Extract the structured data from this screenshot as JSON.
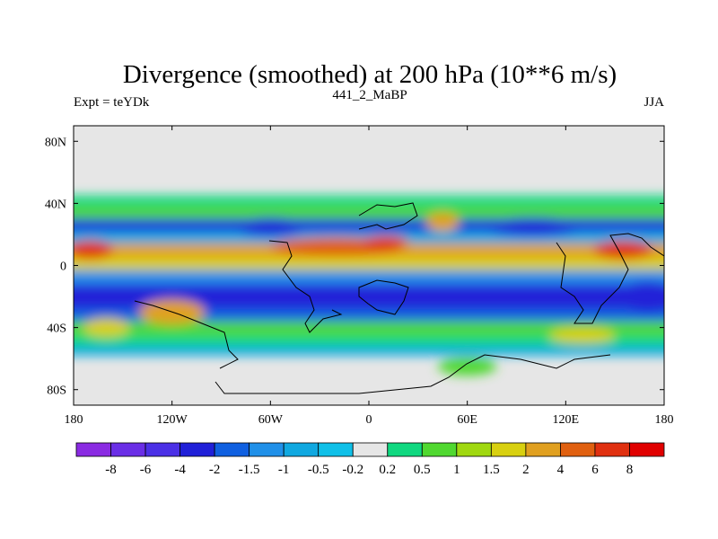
{
  "chart_data": {
    "type": "heatmap",
    "title": "Divergence (smoothed) at 200 hPa (10**6 m/s)",
    "subtitle_left": "Expt = teYDk",
    "subtitle_center": "441_2_MaBP",
    "subtitle_right": "JJA",
    "projection": "cylindrical equidistant",
    "x_range": [
      -180,
      180
    ],
    "y_range": [
      -90,
      90
    ],
    "x_ticks": [
      {
        "value": -180,
        "label": "180"
      },
      {
        "value": -120,
        "label": "120W"
      },
      {
        "value": -60,
        "label": "60W"
      },
      {
        "value": 0,
        "label": "0"
      },
      {
        "value": 60,
        "label": "60E"
      },
      {
        "value": 120,
        "label": "120E"
      },
      {
        "value": 180,
        "label": "180"
      }
    ],
    "y_ticks": [
      {
        "value": 80,
        "label": "80N"
      },
      {
        "value": 40,
        "label": "40N"
      },
      {
        "value": 0,
        "label": "0"
      },
      {
        "value": -40,
        "label": "40S"
      },
      {
        "value": -80,
        "label": "80S"
      }
    ],
    "colorbar": {
      "levels": [
        -8,
        -6,
        -4,
        -2,
        -1.5,
        -1,
        -0.5,
        -0.2,
        0.2,
        0.5,
        1,
        1.5,
        2,
        4,
        6,
        8
      ],
      "labels": [
        "-8",
        "-6",
        "-4",
        "-2",
        "-1.5",
        "-1",
        "-0.5",
        "-0.2",
        "0.2",
        "0.5",
        "1",
        "1.5",
        "2",
        "4",
        "6",
        "8"
      ],
      "colors": [
        "#8a2be2",
        "#6a2ee6",
        "#4b30e6",
        "#2020d8",
        "#1060e0",
        "#2090e8",
        "#10a8e0",
        "#10c0e8",
        "#e6e6e6",
        "#10d880",
        "#50d830",
        "#a0d810",
        "#d8d010",
        "#e0a020",
        "#e06010",
        "#e03010",
        "#e00000"
      ]
    },
    "no_data_color": "#e6e6e6",
    "bands": [
      {
        "lat_top": 45,
        "lat_bottom": 38,
        "color": "#10d880"
      },
      {
        "lat_top": 38,
        "lat_bottom": 30,
        "color": "#50d830"
      },
      {
        "lat_top": 30,
        "lat_bottom": 22,
        "color": "#2020d8"
      },
      {
        "lat_top": 22,
        "lat_bottom": 14,
        "color": "#10a8e0"
      },
      {
        "lat_top": 14,
        "lat_bottom": 5,
        "color": "#e0a020"
      },
      {
        "lat_top": 5,
        "lat_bottom": -3,
        "color": "#d8d010"
      },
      {
        "lat_top": -3,
        "lat_bottom": -12,
        "color": "#2090e8"
      },
      {
        "lat_top": -12,
        "lat_bottom": -28,
        "color": "#2020d8"
      },
      {
        "lat_top": -28,
        "lat_bottom": -36,
        "color": "#1060e0"
      },
      {
        "lat_top": -36,
        "lat_bottom": -45,
        "color": "#50d830"
      },
      {
        "lat_top": -45,
        "lat_bottom": -52,
        "color": "#10d880"
      },
      {
        "lat_top": -52,
        "lat_bottom": -58,
        "color": "#10a8e0"
      }
    ],
    "blobs": [
      {
        "lon": -170,
        "lat": 10,
        "rlon": 14,
        "rlat": 6,
        "color": "#e03010"
      },
      {
        "lon": -20,
        "lat": 12,
        "rlon": 40,
        "rlat": 6,
        "color": "#e06010"
      },
      {
        "lon": 10,
        "lat": 15,
        "rlon": 14,
        "rlat": 4,
        "color": "#e03010"
      },
      {
        "lon": 45,
        "lat": 28,
        "rlon": 10,
        "rlat": 6,
        "color": "#e0a020"
      },
      {
        "lon": 155,
        "lat": 10,
        "rlon": 18,
        "rlat": 6,
        "color": "#e03010"
      },
      {
        "lon": -120,
        "lat": -30,
        "rlon": 20,
        "rlat": 8,
        "color": "#e0a020"
      },
      {
        "lon": -160,
        "lat": -40,
        "rlon": 14,
        "rlat": 6,
        "color": "#d8d010"
      },
      {
        "lon": -60,
        "lat": 25,
        "rlon": 22,
        "rlat": 6,
        "color": "#2020d8"
      },
      {
        "lon": 100,
        "lat": 25,
        "rlon": 30,
        "rlat": 6,
        "color": "#2020d8"
      },
      {
        "lon": 170,
        "lat": -20,
        "rlon": 20,
        "rlat": 10,
        "color": "#2020d8"
      },
      {
        "lon": 130,
        "lat": -45,
        "rlon": 20,
        "rlat": 5,
        "color": "#d8d010"
      },
      {
        "lon": 60,
        "lat": -65,
        "rlon": 18,
        "rlat": 6,
        "color": "#50d830"
      }
    ]
  }
}
